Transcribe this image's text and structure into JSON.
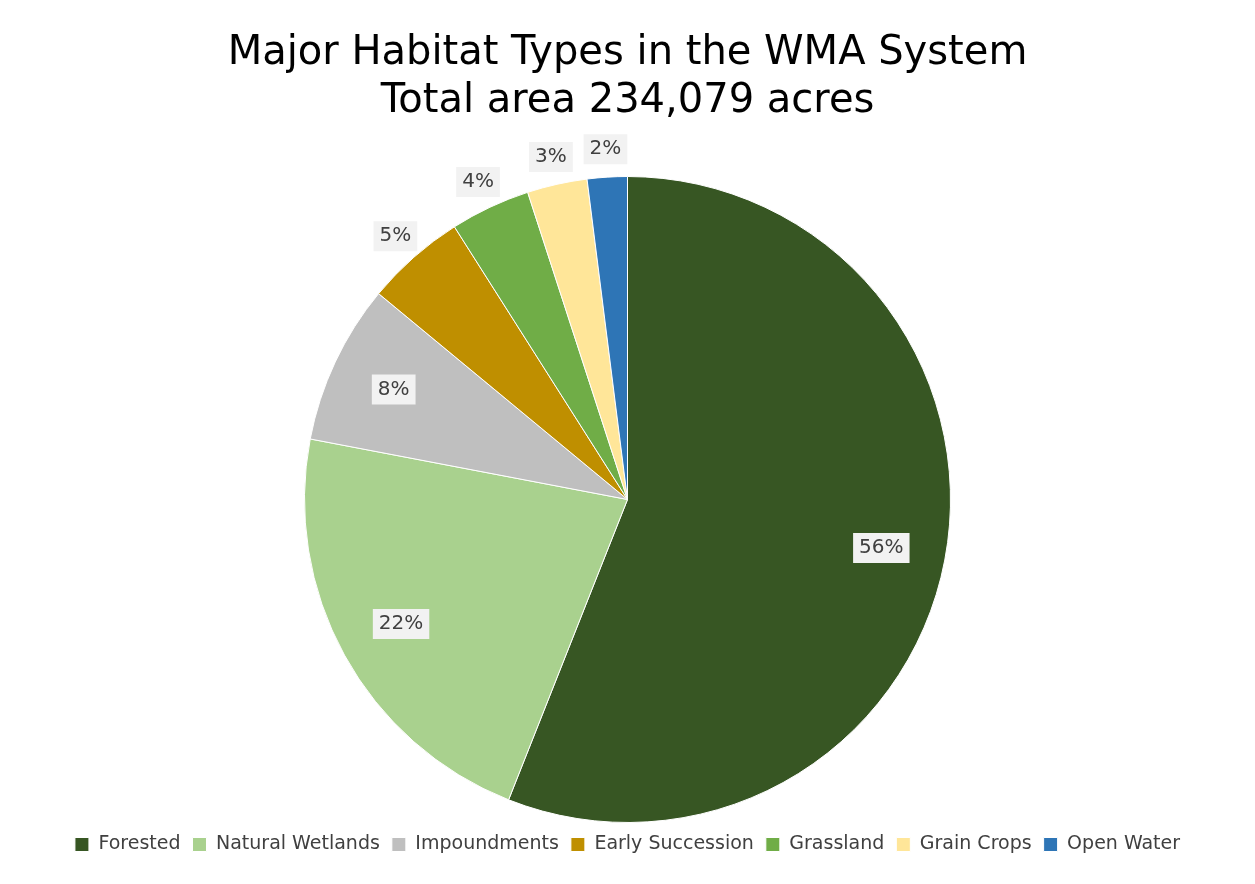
{
  "chart_data": {
    "type": "pie",
    "title": "Major Habitat Types in the WMA System",
    "subtitle": "Total area 234,079 acres",
    "categories": [
      "Forested",
      "Natural Wetlands",
      "Impoundments",
      "Early Succession",
      "Grassland",
      "Grain Crops",
      "Open Water"
    ],
    "values": [
      56,
      22,
      8,
      5,
      4,
      3,
      2
    ],
    "value_labels": [
      "56%",
      "22%",
      "8%",
      "5%",
      "4%",
      "3%",
      "2%"
    ],
    "colors": [
      "#375623",
      "#a9d18e",
      "#bfbfbf",
      "#bf8f00",
      "#70ad47",
      "#ffe699",
      "#2e75b6"
    ],
    "legend": "bottom"
  }
}
